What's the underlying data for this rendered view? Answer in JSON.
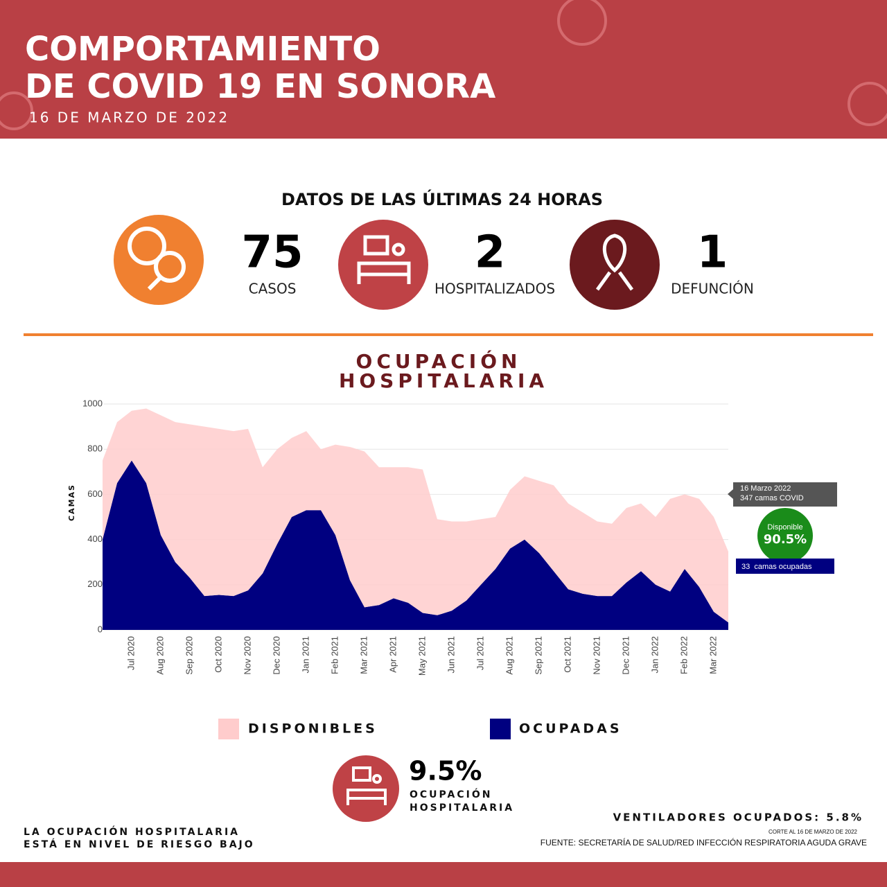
{
  "header": {
    "title": [
      "COMPORTAMIENTO",
      "DE COVID 19 EN SONORA"
    ],
    "date": "16 DE MARZO DE 2022"
  },
  "stats": {
    "heading": "DATOS DE LAS ÚLTIMAS 24 HORAS",
    "items": [
      {
        "value": "75",
        "label": "CASOS"
      },
      {
        "value": "2",
        "label": "HOSPITALIZADOS"
      },
      {
        "value": "1",
        "label": "DEFUNCIÓN"
      }
    ]
  },
  "chart_data": {
    "type": "area",
    "stacked": true,
    "title": [
      "OCUPACIÓN",
      "HOSPITALARIA"
    ],
    "ylabel": "CAMAS",
    "categories": [
      null,
      null,
      "Jul 2020",
      null,
      "Aug 2020",
      null,
      "Sep 2020",
      null,
      "Oct 2020",
      null,
      "Nov 2020",
      null,
      "Dec 2020",
      null,
      "Jan 2021",
      null,
      "Feb 2021",
      null,
      "Mar 2021",
      null,
      "Apr 2021",
      null,
      "May 2021",
      null,
      "Jun 2021",
      null,
      "Jul 2021",
      null,
      "Aug 2021",
      null,
      "Sep 2021",
      null,
      "Oct 2021",
      null,
      "Nov 2021",
      null,
      "Dec 2021",
      null,
      "Jan 2022",
      null,
      "Feb 2022",
      null,
      "Mar 2022",
      null
    ],
    "series": [
      {
        "name": "DISPONIBLES",
        "color": "#ffcccc",
        "values": [
          350,
          270,
          220,
          330,
          530,
          620,
          680,
          750,
          735,
          730,
          715,
          470,
          420,
          350,
          350,
          270,
          400,
          590,
          690,
          610,
          580,
          600,
          635,
          425,
          395,
          350,
          290,
          230,
          260,
          280,
          320,
          380,
          380,
          360,
          330,
          320,
          330,
          300,
          300,
          410,
          330,
          390,
          420,
          314
        ]
      },
      {
        "name": "OCUPADAS",
        "color": "#000080",
        "values": [
          400,
          650,
          750,
          650,
          420,
          300,
          230,
          150,
          155,
          150,
          175,
          250,
          380,
          500,
          530,
          530,
          420,
          220,
          100,
          110,
          140,
          120,
          75,
          65,
          85,
          130,
          200,
          270,
          360,
          400,
          340,
          260,
          180,
          160,
          150,
          150,
          210,
          260,
          200,
          170,
          270,
          190,
          80,
          33
        ]
      }
    ],
    "ylim": [
      0,
      1000
    ],
    "yticks": [
      0,
      200,
      400,
      600,
      800,
      1000
    ],
    "grid": true,
    "annotations": {
      "date": "16 Marzo 2022",
      "total": "347 camas COVID",
      "available_label": "Disponible",
      "available_pct": "90.5%",
      "occupied": "33  camas ocupadas"
    }
  },
  "summary": {
    "pct": "9.5%",
    "label": [
      "OCUPACIÓN",
      "HOSPITALARIA"
    ],
    "ventilators": "VENTILADORES OCUPADOS: 5.8%",
    "cut": "CORTE AL 16 DE MARZO DE 2022",
    "source": "FUENTE: SECRETARÍA DE SALUD/RED INFECCIÓN RESPIRATORIA AGUDA GRAVE",
    "risk": [
      "LA OCUPACIÓN HOSPITALARIA",
      "ESTÁ EN NIVEL DE RIESGO BAJO"
    ]
  }
}
